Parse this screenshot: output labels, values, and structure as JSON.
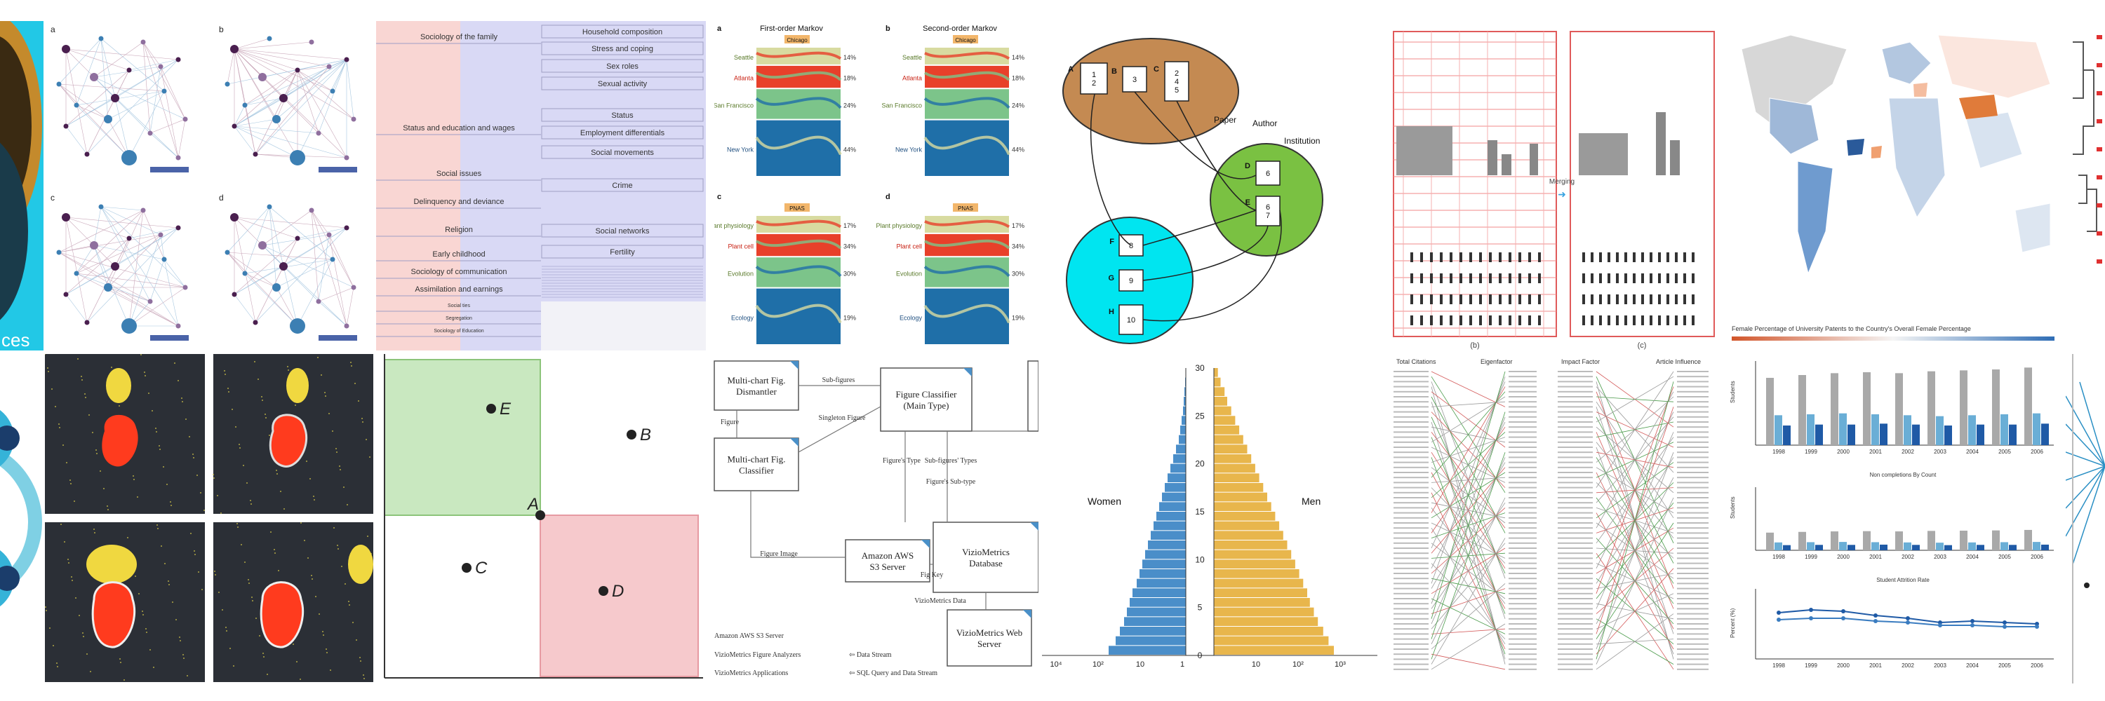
{
  "colors": {
    "sankey_seattle": "#d8dba0",
    "sankey_atlanta": "#e8402a",
    "sankey_sf": "#7cc48a",
    "sankey_ny": "#1f6fa8",
    "venn_brown": "#c48a52",
    "venn_green": "#7ac142",
    "venn_cyan": "#00e5f0",
    "pyramid_women": "#4a8ec9",
    "pyramid_men": "#e8b64c",
    "quad_green": "#c9e8c0",
    "quad_red": "#f6c9cc",
    "tile_dark": "#2b2f36"
  },
  "icons": [
    "network-graph",
    "world-map",
    "scatter-blob",
    "venn-diagram",
    "flowchart",
    "bump-chart",
    "tree-dendrogram"
  ],
  "sankey": {
    "panel_labels": [
      "a",
      "b",
      "c",
      "d"
    ],
    "first_order_title": "First-order Markov",
    "second_order_title": "Second-order Markov",
    "chicago_label": "Chicago",
    "pnas_label": "PNAS",
    "cities": [
      "Seattle",
      "Atlanta",
      "San Francisco",
      "New York"
    ],
    "city_pcts": [
      "14%",
      "18%",
      "24%",
      "44%"
    ],
    "topics": [
      "Plant physiology",
      "Plant cell",
      "Evolution",
      "Ecology"
    ],
    "topic_pcts": [
      "17%",
      "34%",
      "30%",
      "19%"
    ]
  },
  "topics_alluvial": {
    "left": [
      "Sociology of the family",
      "Status and education and wages",
      "Social issues",
      "Delinquency and deviance",
      "Religion",
      "Early childhood",
      "Sociology of communication",
      "Assimilation and earnings",
      "Social ties",
      "Segregation",
      "Sociology of Education"
    ],
    "right": [
      "Household composition",
      "Stress and coping",
      "Sex roles",
      "Sexual activity",
      "Status",
      "Employment differentials",
      "Social movements",
      "Crime",
      "Social networks",
      "Fertility"
    ]
  },
  "venn": {
    "node_letters": [
      "A",
      "B",
      "C",
      "D",
      "E",
      "F",
      "G",
      "H"
    ],
    "boxes": [
      "1\n2",
      "3",
      "2\n4\n5",
      "6",
      "6\n7",
      "8",
      "9",
      "10"
    ],
    "paper_label": "Paper",
    "author_label": "Author",
    "institution_label": "Institution"
  },
  "quadrant": {
    "points": [
      "E",
      "B",
      "A",
      "C",
      "D"
    ]
  },
  "flowchart": {
    "boxes": [
      "Multi-chart Fig. Dismantler",
      "Figure Classifier (Main Type)",
      "Multi-chart Fig. Classifier",
      "Amazon AWS S3 Server",
      "VizioMetrics Database",
      "VizioMetrics Web Server"
    ],
    "edges": [
      "Sub-figures",
      "Singleton Figure",
      "Figure",
      "Figure's Type",
      "Sub-figures' Types",
      "Figure's Sub-type",
      "Figure Image",
      "Fig Key",
      "VizioMetrics Data"
    ],
    "legend": [
      "Amazon AWS S3 Server",
      "VizioMetrics Figure Analyzers",
      "VizioMetrics Applications",
      "Data Stream",
      "SQL Query and Data Stream"
    ]
  },
  "pyramid": {
    "women_label": "Women",
    "men_label": "Men",
    "axis_ticks": [
      "0",
      "5",
      "10",
      "15",
      "20",
      "25",
      "30"
    ],
    "x_ticks": [
      "10⁴",
      "10²",
      "10",
      "1",
      "10",
      "10²",
      "10³"
    ],
    "women": [
      0.55,
      0.5,
      0.47,
      0.44,
      0.42,
      0.4,
      0.38,
      0.35,
      0.33,
      0.31,
      0.29,
      0.27,
      0.25,
      0.23,
      0.21,
      0.19,
      0.17,
      0.15,
      0.13,
      0.11,
      0.09,
      0.07,
      0.05,
      0.04,
      0.03,
      0.02,
      0.015,
      0.01,
      0.005,
      0.002
    ],
    "men": [
      0.9,
      0.86,
      0.82,
      0.78,
      0.75,
      0.72,
      0.7,
      0.67,
      0.64,
      0.61,
      0.58,
      0.55,
      0.52,
      0.49,
      0.46,
      0.43,
      0.4,
      0.37,
      0.34,
      0.31,
      0.28,
      0.25,
      0.22,
      0.19,
      0.16,
      0.13,
      0.1,
      0.08,
      0.05,
      0.03
    ]
  },
  "bars": {
    "x_labels": [
      "1998",
      "1999",
      "2000",
      "2001",
      "2002",
      "2003",
      "2004",
      "2005",
      "2006"
    ],
    "series1": [
      7.2,
      7.5,
      7.7,
      7.8,
      7.7,
      7.9,
      8.0,
      8.1,
      8.3
    ],
    "series2": [
      3.2,
      3.3,
      3.4,
      3.3,
      3.2,
      3.1,
      3.2,
      3.3,
      3.4
    ],
    "series3": [
      2.1,
      2.2,
      2.2,
      2.3,
      2.2,
      2.1,
      2.2,
      2.2,
      2.3
    ],
    "mid_title": "Non completions By Count",
    "bottom_title": "Student Attrition Rate",
    "line1": [
      33,
      35,
      34,
      31,
      29,
      26,
      27,
      26,
      25
    ],
    "line2": [
      28,
      29,
      29,
      27,
      26,
      24,
      24,
      23,
      23
    ],
    "y_label": "Students",
    "y_label_pct": "Percent (%)"
  },
  "map_caption": "Female Percentage of University Patents to the Country's Overall Female Percentage",
  "bump": {
    "left_header": "Total Citations",
    "mid_header": "Eigenfactor",
    "right_header": "Impact Factor",
    "far_header": "Article Influence"
  },
  "genomic": {
    "merging_label": "Merging",
    "panel_b": "(b)",
    "panel_c": "(c)"
  },
  "network": {
    "panels": [
      "a",
      "b",
      "c",
      "d"
    ]
  },
  "left_edge_text": "ces"
}
